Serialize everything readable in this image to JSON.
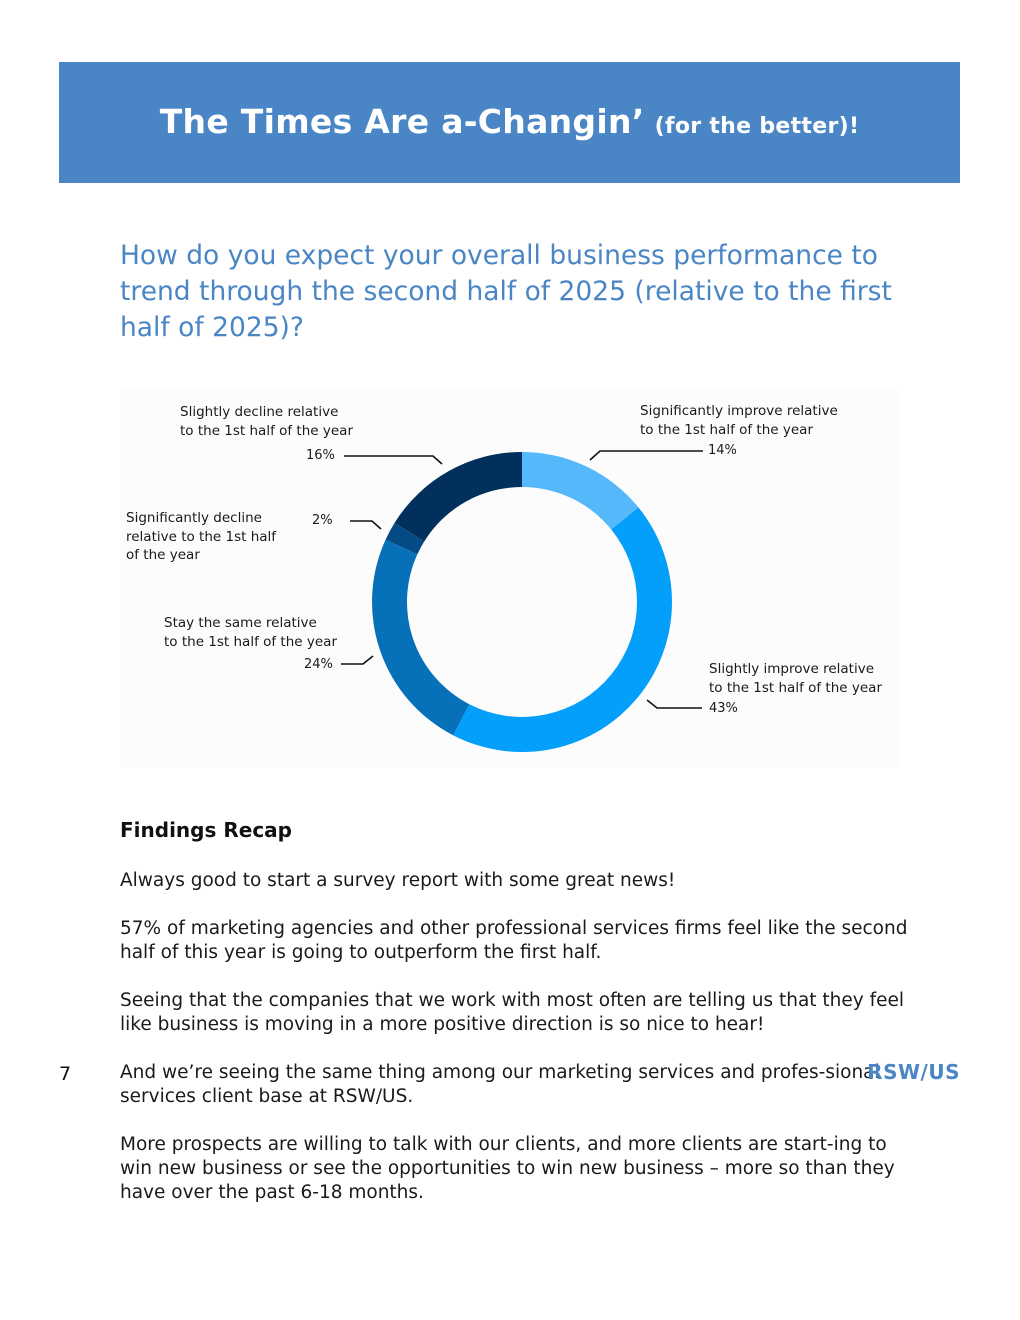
{
  "banner": {
    "title": "The Times Are a-Changin’",
    "subtitle": "(for the better)!"
  },
  "question": "How do you expect your overall business performance to trend through the second half of 2025 (relative to the first half of 2025)?",
  "chart_data": {
    "type": "pie",
    "variant": "donut",
    "start_angle_deg": 0,
    "direction": "clockwise",
    "slices": [
      {
        "label": "Significantly improve relative to the 1st half of the year",
        "value": 14,
        "display": "14%",
        "color": "#55b8fb"
      },
      {
        "label": "Slightly improve relative to the 1st half of the year",
        "value": 43,
        "display": "43%",
        "color": "#049ffb"
      },
      {
        "label": "Stay the same relative to the 1st half of the year",
        "value": 24,
        "display": "24%",
        "color": "#0670b8"
      },
      {
        "label": "Significantly decline relative to the 1st half of the year",
        "value": 2,
        "display": "2%",
        "color": "#044b86"
      },
      {
        "label": "Slightly decline relative to the 1st half of the year",
        "value": 16,
        "display": "16%",
        "color": "#02305c"
      }
    ],
    "legend": "none"
  },
  "labels": {
    "significantly_improve": [
      "Significantly improve relative",
      "to the 1st half of the year"
    ],
    "slightly_improve": [
      "Slightly improve relative",
      "to the 1st half of the year"
    ],
    "stay_same": [
      "Stay the same relative",
      "to the 1st half of the year"
    ],
    "significantly_decline": [
      "Significantly decline",
      "relative to the 1st half",
      "of the year"
    ],
    "slightly_decline": [
      "Slightly decline relative",
      "to the 1st half of the year"
    ]
  },
  "findings": {
    "title": "Findings Recap",
    "paragraphs": [
      "Always good to start a survey report with some great news!",
      "57% of marketing agencies and other professional services firms feel like the second half of this year is going to outperform the first half.",
      "Seeing that the companies that we work with most often are telling us that they feel like business is moving in a more positive direction is so nice to hear!",
      "And we’re seeing the same thing among our marketing services and profes-sional services client base at RSW/US.",
      "More prospects are willing to talk with our clients, and more clients are start-ing to win new business or see the opportunities to win new business – more so than they have over the past 6-18 months."
    ]
  },
  "footer": {
    "page_number": "7",
    "logo": "RSW/US"
  }
}
